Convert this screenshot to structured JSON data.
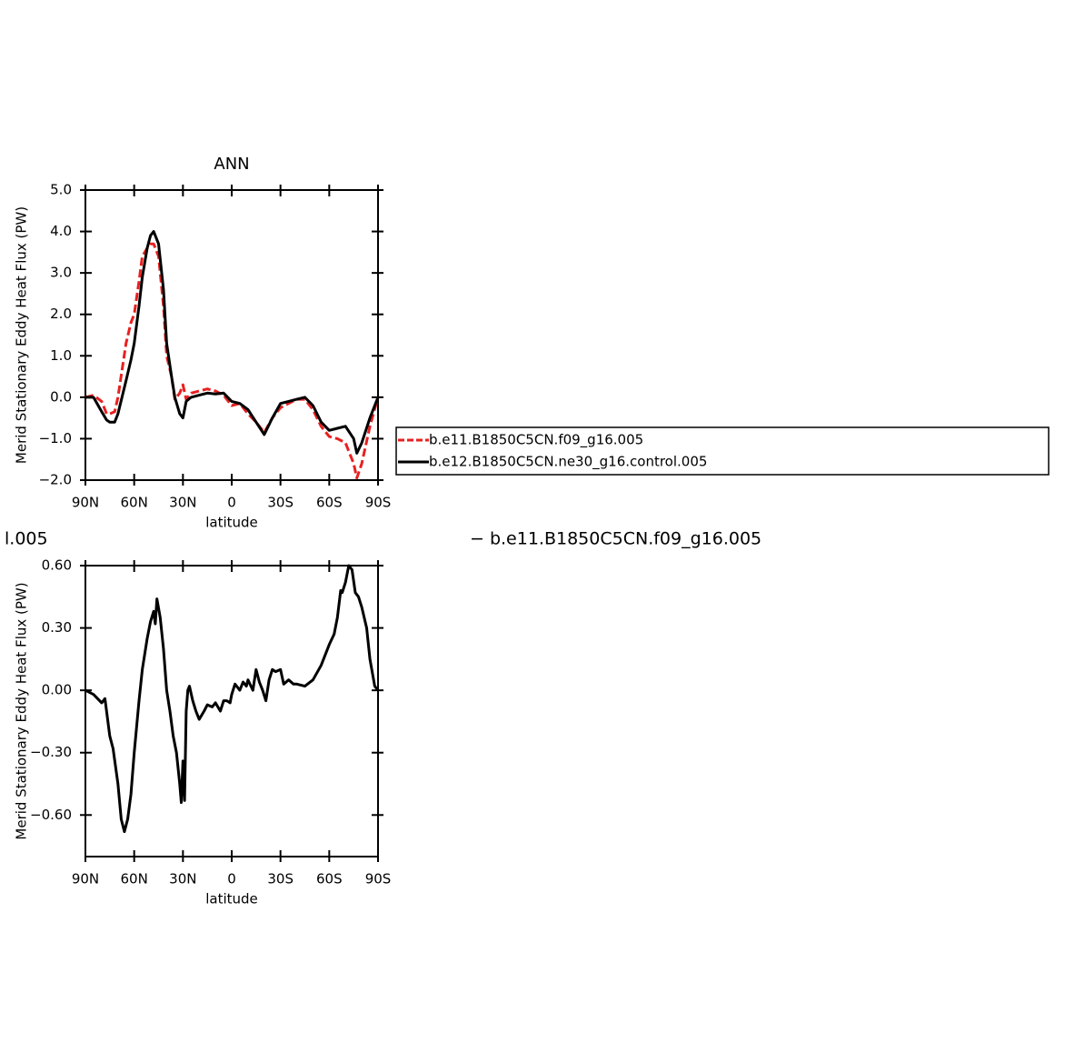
{
  "chart_data": [
    {
      "type": "line",
      "title": "ANN",
      "ylabel": "Merid Stationary Eddy Heat Flux (PW)",
      "xlabel": "latitude",
      "x": [
        90,
        85,
        80,
        77,
        75,
        72,
        70,
        65,
        62,
        60,
        57,
        55,
        52,
        50,
        48,
        45,
        42,
        40,
        37,
        35,
        32,
        30,
        28,
        25,
        20,
        15,
        10,
        5,
        0,
        -5,
        -10,
        -15,
        -20,
        -25,
        -30,
        -35,
        -40,
        -45,
        -50,
        -55,
        -60,
        -65,
        -70,
        -75,
        -77,
        -80,
        -85,
        -90
      ],
      "series": [
        {
          "name": "b.e11.B1850C5CN.f09_g16.005",
          "color": "#e8201f",
          "style": "dashed",
          "values": [
            0.0,
            0.05,
            -0.1,
            -0.4,
            -0.4,
            -0.35,
            0.0,
            1.3,
            1.8,
            2.0,
            2.8,
            3.4,
            3.6,
            3.7,
            3.7,
            3.4,
            2.2,
            1.0,
            0.5,
            -0.05,
            0.1,
            0.3,
            -0.05,
            0.1,
            0.15,
            0.2,
            0.15,
            0.05,
            -0.2,
            -0.15,
            -0.4,
            -0.6,
            -0.85,
            -0.5,
            -0.25,
            -0.15,
            -0.05,
            -0.05,
            -0.3,
            -0.7,
            -0.95,
            -1.0,
            -1.1,
            -1.6,
            -1.95,
            -1.6,
            -0.7,
            0.0
          ]
        },
        {
          "name": "b.e12.B1850C5CN.ne30_g16.control.005",
          "color": "#000000",
          "style": "solid",
          "values": [
            0.0,
            0.0,
            -0.35,
            -0.55,
            -0.6,
            -0.6,
            -0.4,
            0.4,
            0.9,
            1.3,
            2.2,
            2.9,
            3.6,
            3.9,
            4.0,
            3.7,
            2.6,
            1.3,
            0.5,
            0.0,
            -0.4,
            -0.5,
            -0.1,
            0.0,
            0.05,
            0.1,
            0.08,
            0.1,
            -0.1,
            -0.15,
            -0.3,
            -0.6,
            -0.9,
            -0.5,
            -0.15,
            -0.1,
            -0.05,
            0.0,
            -0.2,
            -0.6,
            -0.8,
            -0.75,
            -0.7,
            -1.0,
            -1.35,
            -1.1,
            -0.5,
            0.0
          ]
        }
      ],
      "xlim": [
        90,
        -90
      ],
      "xticks": [
        {
          "value": 90,
          "label": "90N"
        },
        {
          "value": 60,
          "label": "60N"
        },
        {
          "value": 30,
          "label": "30N"
        },
        0,
        {
          "value": -30,
          "label": "30S"
        },
        {
          "value": -60,
          "label": "60S"
        },
        {
          "value": -90,
          "label": "90S"
        }
      ],
      "ylim": [
        -2,
        5
      ],
      "yticks": [
        {
          "value": 5,
          "label": "5.0"
        },
        {
          "value": 4,
          "label": "4.0"
        },
        {
          "value": 3,
          "label": "3.0"
        },
        {
          "value": 2,
          "label": "2.0"
        },
        {
          "value": 1,
          "label": "1.0"
        },
        {
          "value": 0,
          "label": "0.0"
        },
        {
          "value": -1,
          "label": "−1.0"
        },
        {
          "value": -2,
          "label": "−2.0"
        }
      ],
      "legend": "right"
    },
    {
      "type": "line",
      "title_parts": [
        "l.005",
        "− b.e11.B1850C5CN.f09_g16.005"
      ],
      "ylabel": "Merid Stationary Eddy Heat Flux (PW)",
      "xlabel": "latitude",
      "x": [
        90,
        85,
        80,
        78,
        75,
        73,
        70,
        68,
        66,
        64,
        62,
        60,
        57,
        55,
        52,
        50,
        48,
        47,
        46,
        44,
        42,
        40,
        38,
        36,
        34,
        32,
        31,
        30,
        29,
        28,
        27,
        26,
        24,
        22,
        20,
        17,
        15,
        12,
        10,
        7,
        5,
        3,
        1,
        0,
        -2,
        -5,
        -7,
        -9,
        -10,
        -13,
        -15,
        -17,
        -19,
        -21,
        -23,
        -25,
        -27,
        -30,
        -32,
        -35,
        -38,
        -40,
        -45,
        -50,
        -55,
        -60,
        -63,
        -65,
        -67,
        -68,
        -70,
        -72,
        -74,
        -76,
        -78,
        -80,
        -83,
        -85,
        -88,
        -90
      ],
      "series": [
        {
          "name": null,
          "color": "#000000",
          "style": "solid",
          "values": [
            0.0,
            -0.02,
            -0.06,
            -0.04,
            -0.22,
            -0.28,
            -0.45,
            -0.62,
            -0.68,
            -0.62,
            -0.5,
            -0.3,
            -0.05,
            0.1,
            0.25,
            0.33,
            0.38,
            0.32,
            0.44,
            0.35,
            0.2,
            0.0,
            -0.1,
            -0.22,
            -0.3,
            -0.45,
            -0.54,
            -0.34,
            -0.53,
            -0.1,
            0.0,
            0.02,
            -0.05,
            -0.1,
            -0.14,
            -0.1,
            -0.07,
            -0.08,
            -0.06,
            -0.1,
            -0.05,
            -0.05,
            -0.06,
            -0.02,
            0.03,
            0.0,
            0.04,
            0.02,
            0.05,
            0.0,
            0.1,
            0.04,
            0.0,
            -0.05,
            0.05,
            0.1,
            0.09,
            0.1,
            0.03,
            0.05,
            0.03,
            0.03,
            0.02,
            0.05,
            0.12,
            0.22,
            0.27,
            0.35,
            0.48,
            0.47,
            0.52,
            0.6,
            0.58,
            0.47,
            0.45,
            0.4,
            0.3,
            0.15,
            0.02,
            0.0
          ]
        }
      ],
      "xlim": [
        90,
        -90
      ],
      "xticks": [
        {
          "value": 90,
          "label": "90N"
        },
        {
          "value": 60,
          "label": "60N"
        },
        {
          "value": 30,
          "label": "30N"
        },
        0,
        {
          "value": -30,
          "label": "30S"
        },
        {
          "value": -60,
          "label": "60S"
        },
        {
          "value": -90,
          "label": "90S"
        }
      ],
      "ylim": [
        -0.8,
        0.6
      ],
      "yticks": [
        {
          "value": 0.6,
          "label": "0.60"
        },
        {
          "value": 0.3,
          "label": "0.30"
        },
        {
          "value": 0,
          "label": "0.00"
        },
        {
          "value": -0.3,
          "label": "−0.30"
        },
        {
          "value": -0.6,
          "label": "−0.60"
        }
      ]
    }
  ]
}
